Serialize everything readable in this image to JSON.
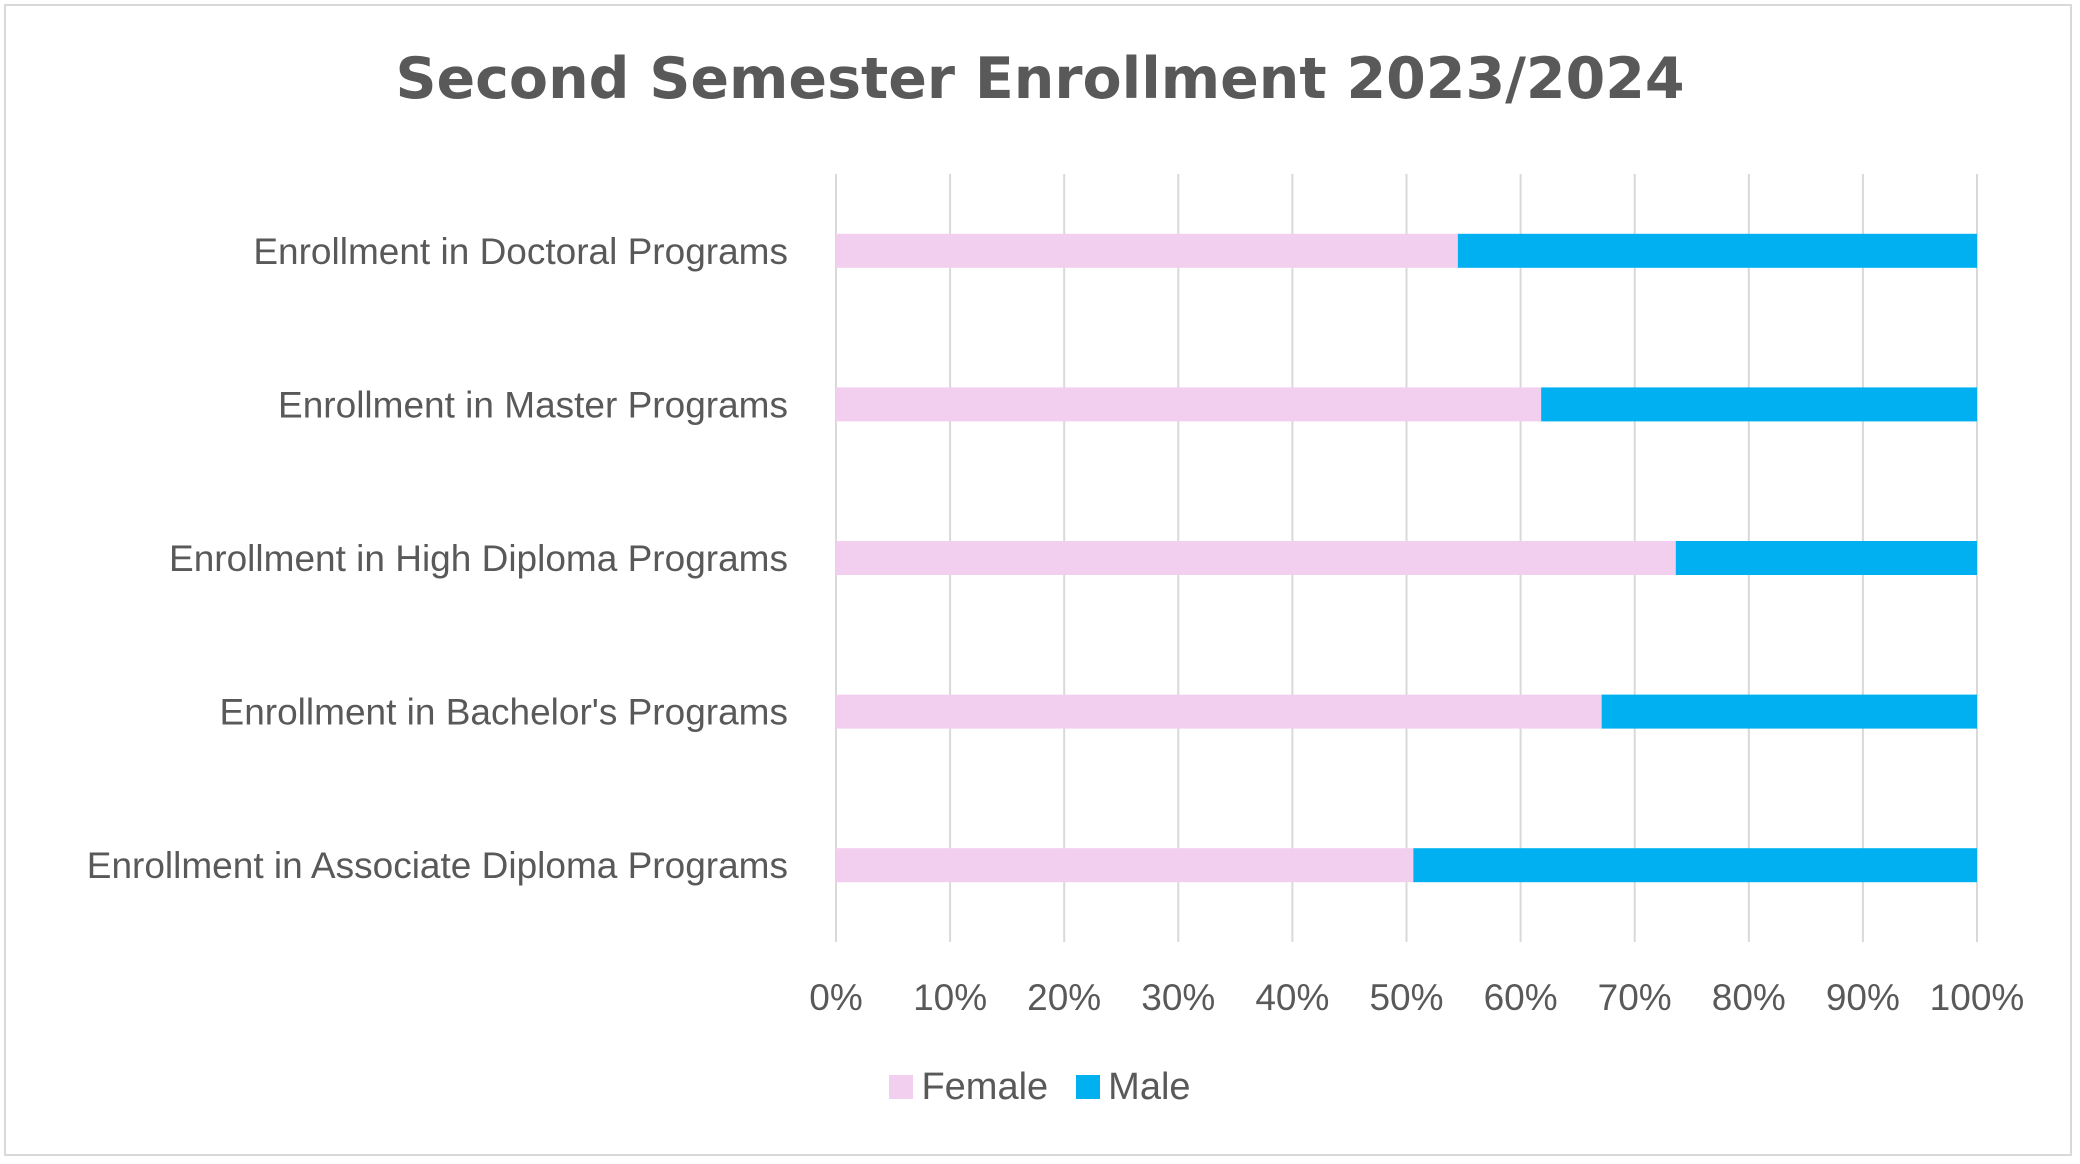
{
  "chart_data": {
    "type": "bar",
    "orientation": "horizontal",
    "stacked": "percent",
    "title": "Second Semester Enrollment 2023/2024",
    "categories": [
      "Enrollment in Doctoral Programs",
      "Enrollment in Master Programs",
      "Enrollment in High Diploma Programs",
      "Enrollment in Bachelor's Programs",
      "Enrollment in Associate Diploma Programs"
    ],
    "series": [
      {
        "name": "Female",
        "color": "#f2cfee",
        "values": [
          54.5,
          61.8,
          73.6,
          67.1,
          50.6
        ]
      },
      {
        "name": "Male",
        "color": "#00b0f0",
        "values": [
          45.5,
          38.2,
          26.4,
          32.9,
          49.4
        ]
      }
    ],
    "xlim": [
      0,
      100
    ],
    "xticks": [
      "0%",
      "10%",
      "20%",
      "30%",
      "40%",
      "50%",
      "60%",
      "70%",
      "80%",
      "90%",
      "100%"
    ],
    "grid": true,
    "legend_position": "bottom"
  }
}
